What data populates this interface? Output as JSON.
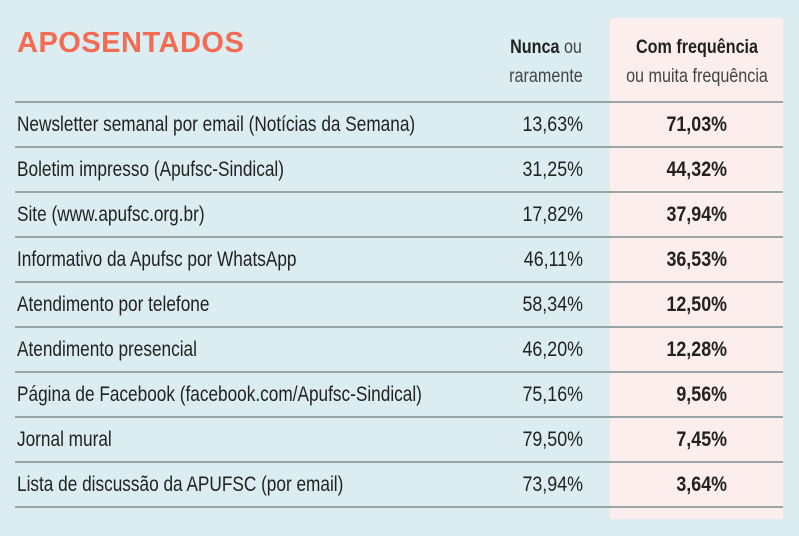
{
  "title": "APOSENTADOS",
  "headers": {
    "never_bold": "Nunca",
    "never_rest1": "ou",
    "never_rest2": "raramente",
    "freq_bold": "Com frequência",
    "freq_rest": "ou muita frequência"
  },
  "colors": {
    "title": "#f26b52",
    "background": "#dbedf0",
    "highlight": "#fdeeee"
  },
  "chart_data": {
    "type": "table",
    "title": "APOSENTADOS",
    "columns": [
      "",
      "Nunca ou raramente",
      "Com frequência ou muita frequência"
    ],
    "rows": [
      {
        "label": "Newsletter semanal por email (Notícias da Semana)",
        "never": "13,63%",
        "freq": "71,03%"
      },
      {
        "label": "Boletim impresso (Apufsc-Sindical)",
        "never": "31,25%",
        "freq": "44,32%"
      },
      {
        "label": "Site (www.apufsc.org.br)",
        "never": "17,82%",
        "freq": "37,94%"
      },
      {
        "label": "Informativo da Apufsc por WhatsApp",
        "never": "46,11%",
        "freq": "36,53%"
      },
      {
        "label": "Atendimento por telefone",
        "never": "58,34%",
        "freq": "12,50%"
      },
      {
        "label": "Atendimento presencial",
        "never": "46,20%",
        "freq": "12,28%"
      },
      {
        "label": "Página de Facebook (facebook.com/Apufsc-Sindical)",
        "never": "75,16%",
        "freq": "9,56%"
      },
      {
        "label": "Jornal mural",
        "never": "79,50%",
        "freq": "7,45%"
      },
      {
        "label": "Lista de discussão da APUFSC (por email)",
        "never": "73,94%",
        "freq": "3,64%"
      }
    ]
  }
}
